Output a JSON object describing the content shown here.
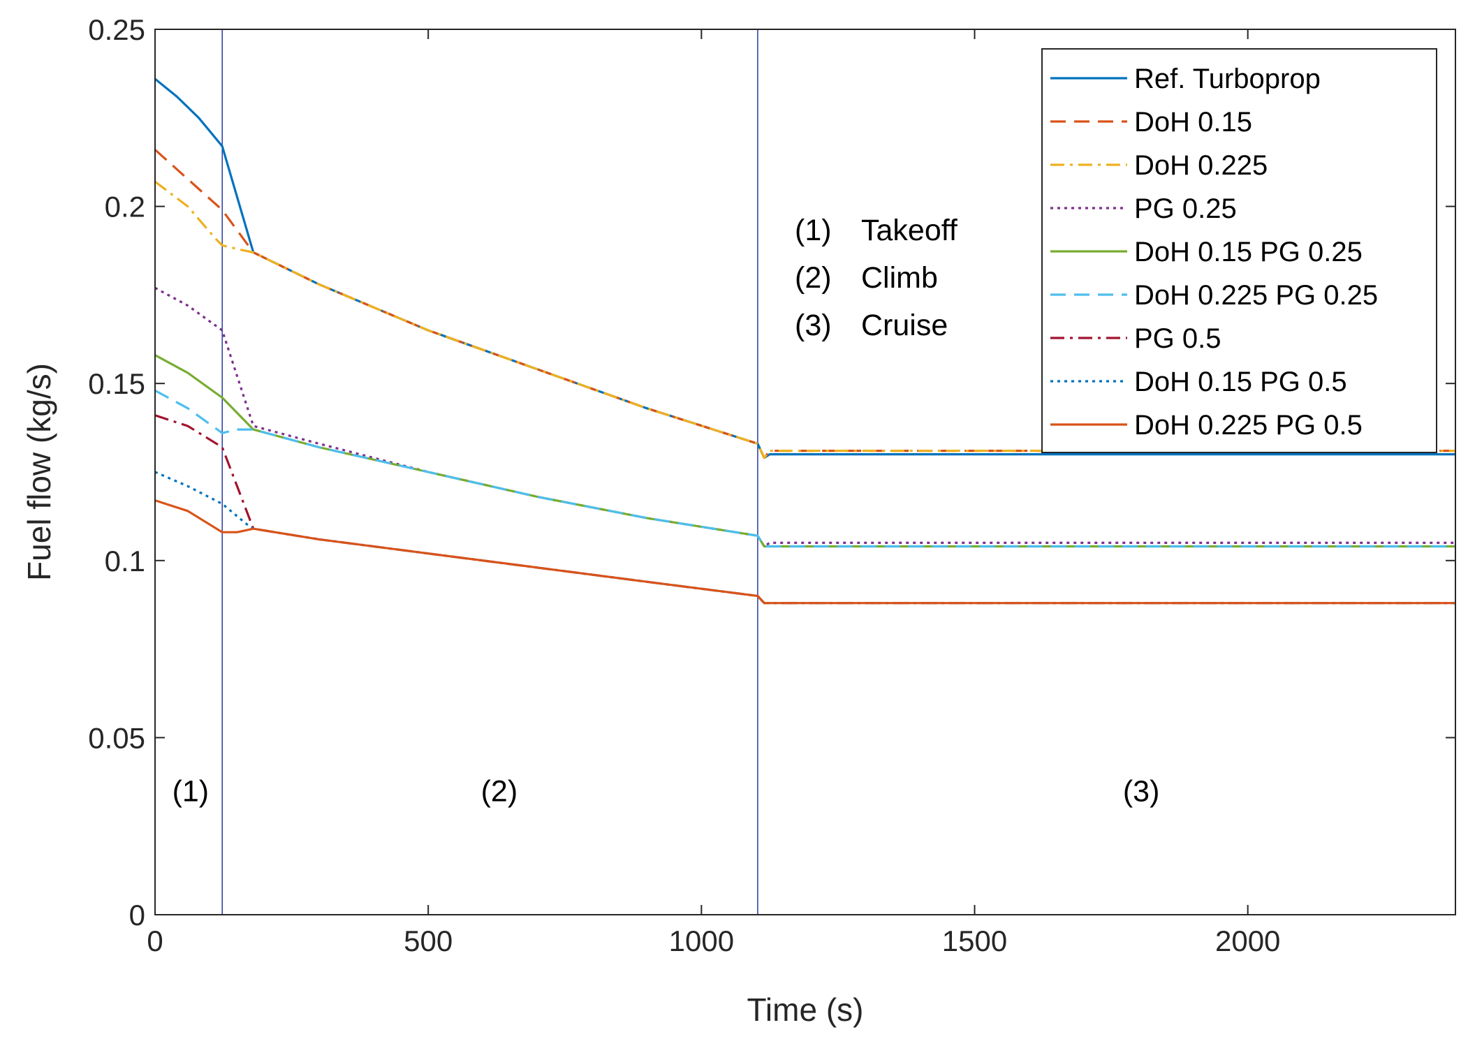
{
  "chart_data": {
    "type": "line",
    "title": "",
    "xlabel": "Time (s)",
    "ylabel": "Fuel flow (kg/s)",
    "xlim": [
      0,
      2380
    ],
    "ylim": [
      0,
      0.25
    ],
    "xticks": [
      0,
      500,
      1000,
      1500,
      2000
    ],
    "xtick_labels": [
      "0",
      "500",
      "1000",
      "1500",
      "2000"
    ],
    "yticks": [
      0,
      0.05,
      0.1,
      0.15,
      0.2,
      0.25
    ],
    "ytick_labels": [
      "0",
      "0.05",
      "0.1",
      "0.15",
      "0.2",
      "0.25"
    ],
    "grid": false,
    "legend_position": "top-right",
    "phase_boundaries": [
      123,
      1103
    ],
    "phase_markers": [
      {
        "label": "(1)",
        "x": 65,
        "y": 0.035
      },
      {
        "label": "(2)",
        "x": 630,
        "y": 0.035
      },
      {
        "label": "(3)",
        "x": 1805,
        "y": 0.035
      }
    ],
    "phase_legend": [
      {
        "num": "(1)",
        "name": "Takeoff"
      },
      {
        "num": "(2)",
        "name": "Climb"
      },
      {
        "num": "(3)",
        "name": "Cruise"
      }
    ],
    "series": [
      {
        "name": "Ref. Turboprop",
        "color": "#0072BD",
        "style": "solid",
        "x": [
          0,
          40,
          80,
          123,
          180,
          300,
          500,
          700,
          900,
          1103,
          1115,
          1125,
          2380
        ],
        "y": [
          0.236,
          0.231,
          0.225,
          0.217,
          0.187,
          0.178,
          0.165,
          0.154,
          0.143,
          0.133,
          0.129,
          0.13,
          0.13
        ]
      },
      {
        "name": "DoH 0.15",
        "color": "#D95319",
        "style": "dashed",
        "x": [
          0,
          123,
          180,
          300,
          500,
          700,
          900,
          1103,
          1115,
          1125,
          2380
        ],
        "y": [
          0.216,
          0.199,
          0.187,
          0.178,
          0.165,
          0.154,
          0.143,
          0.133,
          0.129,
          0.131,
          0.131
        ]
      },
      {
        "name": "DoH 0.225",
        "color": "#EDB120",
        "style": "dashdot",
        "x": [
          0,
          60,
          110,
          123,
          150,
          180,
          300,
          500,
          700,
          900,
          1103,
          1115,
          1125,
          2380
        ],
        "y": [
          0.207,
          0.2,
          0.191,
          0.189,
          0.188,
          0.187,
          0.178,
          0.165,
          0.154,
          0.143,
          0.133,
          0.129,
          0.131,
          0.131
        ]
      },
      {
        "name": "PG 0.25",
        "color": "#7E2F8E",
        "style": "dotted",
        "x": [
          0,
          60,
          123,
          180,
          300,
          500,
          700,
          900,
          1103,
          1115,
          1125,
          2380
        ],
        "y": [
          0.177,
          0.172,
          0.165,
          0.138,
          0.133,
          0.125,
          0.118,
          0.112,
          0.107,
          0.104,
          0.105,
          0.105
        ]
      },
      {
        "name": "DoH 0.15 PG 0.25",
        "color": "#77AC30",
        "style": "solid",
        "x": [
          0,
          60,
          123,
          180,
          300,
          500,
          700,
          900,
          1103,
          1115,
          1125,
          2380
        ],
        "y": [
          0.158,
          0.153,
          0.146,
          0.137,
          0.132,
          0.125,
          0.118,
          0.112,
          0.107,
          0.104,
          0.104,
          0.104
        ]
      },
      {
        "name": "DoH 0.225 PG 0.25",
        "color": "#4DBEEE",
        "style": "dashed",
        "x": [
          0,
          60,
          123,
          150,
          180,
          300,
          500,
          700,
          900,
          1103,
          1115,
          1125,
          2380
        ],
        "y": [
          0.148,
          0.143,
          0.136,
          0.137,
          0.137,
          0.132,
          0.125,
          0.118,
          0.112,
          0.107,
          0.104,
          0.104,
          0.104
        ]
      },
      {
        "name": "PG 0.5",
        "color": "#A2142F",
        "style": "dashdot",
        "x": [
          0,
          60,
          123,
          180,
          300,
          500,
          700,
          900,
          1103,
          1115,
          1125,
          2380
        ],
        "y": [
          0.141,
          0.138,
          0.132,
          0.109,
          0.106,
          0.102,
          0.098,
          0.094,
          0.09,
          0.088,
          0.088,
          0.088
        ]
      },
      {
        "name": "DoH 0.15 PG 0.5",
        "color": "#0072BD",
        "style": "dotted",
        "x": [
          0,
          60,
          123,
          170,
          180,
          300,
          500,
          700,
          900,
          1103,
          1115,
          1125,
          2380
        ],
        "y": [
          0.125,
          0.121,
          0.116,
          0.11,
          0.109,
          0.106,
          0.102,
          0.098,
          0.094,
          0.09,
          0.088,
          0.088,
          0.088
        ]
      },
      {
        "name": "DoH 0.225 PG 0.5",
        "color": "#D95319",
        "style": "solid",
        "x": [
          0,
          60,
          123,
          150,
          180,
          300,
          500,
          700,
          900,
          1103,
          1115,
          1125,
          2380
        ],
        "y": [
          0.117,
          0.114,
          0.108,
          0.108,
          0.109,
          0.106,
          0.102,
          0.098,
          0.094,
          0.09,
          0.088,
          0.088,
          0.088
        ]
      }
    ]
  }
}
